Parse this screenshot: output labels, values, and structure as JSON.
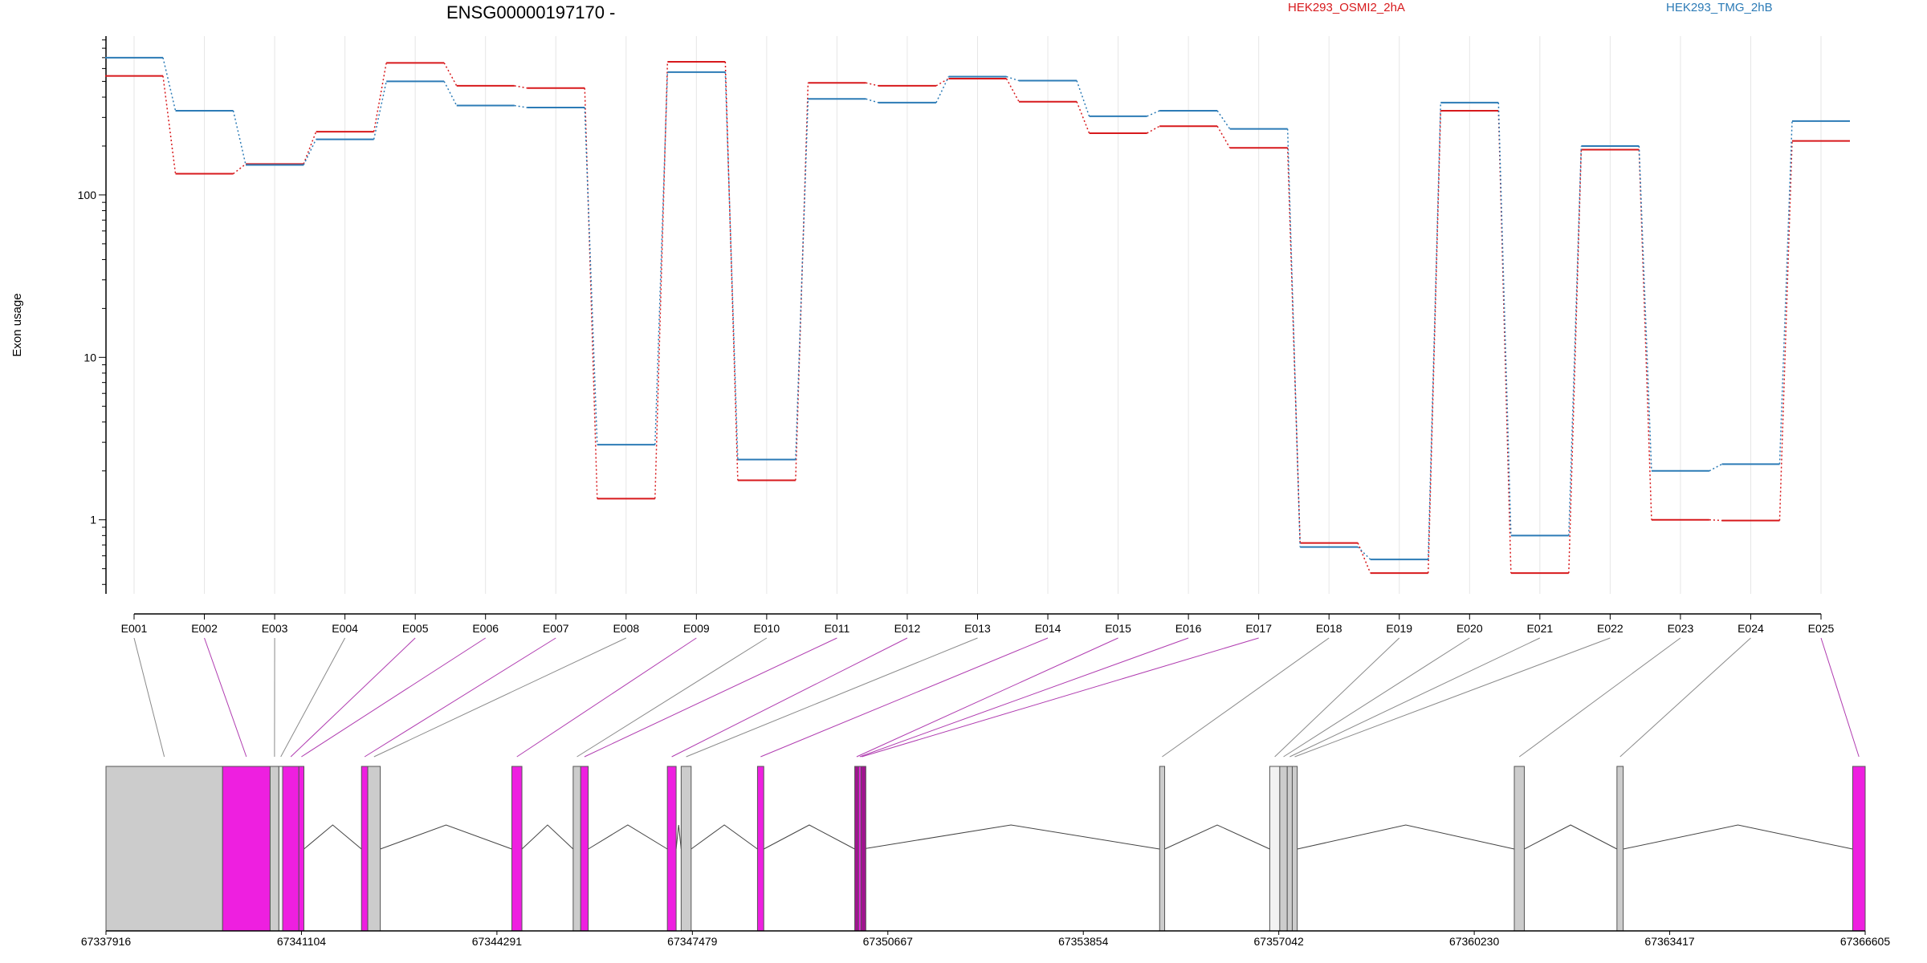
{
  "title": "ENSG00000197170 -",
  "legend": {
    "series_a": "HEK293_OSMI2_2hA",
    "series_b": "HEK293_TMG_2hB"
  },
  "colors": {
    "series_a": "#d7191c",
    "series_b": "#2c7bb6",
    "exon_highlight": "#ee1fe0",
    "exon_dark": "#a0148f",
    "exon_plain": "#cccccc",
    "exon_white": "#f2f2f2",
    "connector_highlight": "#b03cb0",
    "connector_plain": "#8a8a8a",
    "grid": "#e6e6e6"
  },
  "chart_data": {
    "type": "line",
    "ylabel": "Exon usage",
    "yscale": "log",
    "ylim": [
      0.35,
      950
    ],
    "yticks": [
      1,
      10,
      100
    ],
    "ytick_labels": [
      "1",
      "10",
      "100"
    ],
    "categories": [
      "E001",
      "E002",
      "E003",
      "E004",
      "E005",
      "E006",
      "E007",
      "E008",
      "E009",
      "E010",
      "E011",
      "E012",
      "E013",
      "E014",
      "E015",
      "E016",
      "E017",
      "E018",
      "E019",
      "E020",
      "E021",
      "E022",
      "E023",
      "E024",
      "E025"
    ],
    "series": [
      {
        "name": "HEK293_OSMI2_2hA",
        "color": "#d7191c",
        "values": [
          540,
          135,
          155,
          245,
          650,
          470,
          455,
          1.35,
          660,
          1.75,
          490,
          470,
          520,
          375,
          240,
          265,
          195,
          0.72,
          0.47,
          330,
          0.47,
          190,
          1.0,
          0.99,
          215
        ]
      },
      {
        "name": "HEK293_TMG_2hB",
        "color": "#2c7bb6",
        "values": [
          700,
          330,
          153,
          220,
          500,
          355,
          345,
          2.9,
          570,
          2.35,
          390,
          370,
          535,
          505,
          305,
          330,
          255,
          0.68,
          0.57,
          370,
          0.8,
          200,
          2.0,
          2.2,
          285
        ]
      }
    ]
  },
  "gene_model": {
    "coord_labels": [
      "67337916",
      "67341104",
      "67344291",
      "67347479",
      "67350667",
      "67353854",
      "67357042",
      "67360230",
      "67363417",
      "67366605"
    ],
    "exons": [
      {
        "id": "E001",
        "start": 67337916,
        "end": 67339818,
        "kind": "plain"
      },
      {
        "id": "E002",
        "start": 67339818,
        "end": 67340593,
        "kind": "highlight"
      },
      {
        "id": "E003",
        "start": 67340593,
        "end": 67340736,
        "kind": "plain"
      },
      {
        "id": "E004",
        "start": 67340736,
        "end": 67340797,
        "kind": "white"
      },
      {
        "id": "E005",
        "start": 67340797,
        "end": 67341062,
        "kind": "highlight"
      },
      {
        "id": "E006",
        "start": 67341062,
        "end": 67341144,
        "kind": "highlight"
      },
      {
        "id": "E007",
        "start": 67342083,
        "end": 67342185,
        "kind": "highlight"
      },
      {
        "id": "E008",
        "start": 67342185,
        "end": 67342389,
        "kind": "plain"
      },
      {
        "id": "E009",
        "start": 67344535,
        "end": 67344699,
        "kind": "highlight"
      },
      {
        "id": "E010",
        "start": 67345535,
        "end": 67345658,
        "kind": "plain"
      },
      {
        "id": "E011",
        "start": 67345658,
        "end": 67345780,
        "kind": "highlight"
      },
      {
        "id": "E012",
        "start": 67347071,
        "end": 67347214,
        "kind": "highlight"
      },
      {
        "id": "E013",
        "start": 67347296,
        "end": 67347459,
        "kind": "plain"
      },
      {
        "id": "E014",
        "start": 67348541,
        "end": 67348643,
        "kind": "highlight"
      },
      {
        "id": "E015",
        "start": 67350127,
        "end": 67350188,
        "kind": "dark"
      },
      {
        "id": "E016",
        "start": 67350188,
        "end": 67350229,
        "kind": "highlight"
      },
      {
        "id": "E017",
        "start": 67350229,
        "end": 67350250,
        "kind": "dark"
      },
      {
        "id": "E018",
        "start": 67355099,
        "end": 67355181,
        "kind": "plain"
      },
      {
        "id": "E019",
        "start": 67356895,
        "end": 67357058,
        "kind": "white"
      },
      {
        "id": "E020",
        "start": 67357058,
        "end": 67357180,
        "kind": "plain"
      },
      {
        "id": "E021",
        "start": 67357180,
        "end": 67357262,
        "kind": "plain"
      },
      {
        "id": "E022",
        "start": 67357262,
        "end": 67357343,
        "kind": "plain"
      },
      {
        "id": "E023",
        "start": 67360883,
        "end": 67361046,
        "kind": "plain"
      },
      {
        "id": "E024",
        "start": 67362557,
        "end": 67362659,
        "kind": "plain"
      },
      {
        "id": "E025",
        "start": 67366401,
        "end": 67366605,
        "kind": "highlight"
      }
    ]
  }
}
